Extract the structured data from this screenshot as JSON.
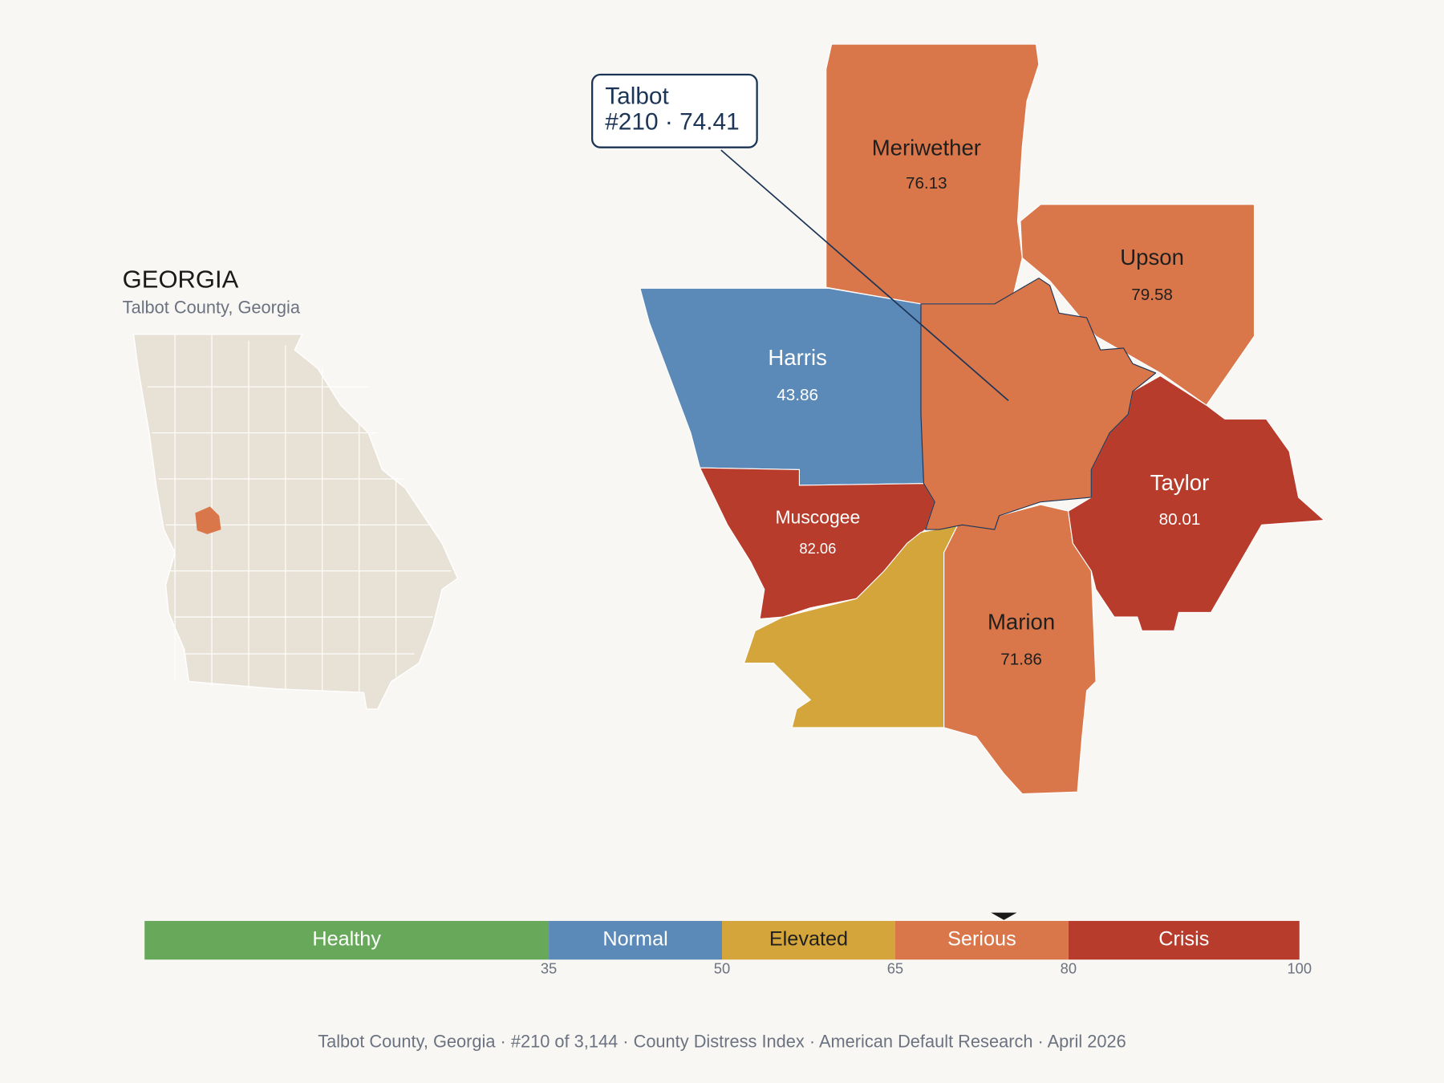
{
  "inset": {
    "title": "GEORGIA",
    "subtitle": "Talbot County, Georgia",
    "base_color": "#e8e2d6",
    "highlight_color": "#d9764a"
  },
  "counties": [
    {
      "name": "Meriwether",
      "value": 76.13,
      "color": "#d9764a"
    },
    {
      "name": "Upson",
      "value": 79.58,
      "color": "#d9764a"
    },
    {
      "name": "Harris",
      "value": 43.86,
      "color": "#5b8ab8"
    },
    {
      "color": "#d9764a"
    },
    {
      "name": "Muscogee",
      "value": 82.06,
      "color": "#b83c2c"
    },
    {
      "color": "#d4a53a"
    },
    {
      "name": "Marion",
      "value": 71.86,
      "color": "#d9764a"
    },
    {
      "name": "Taylor",
      "value": 80.01,
      "color": "#b83c2c"
    }
  ],
  "callout": {
    "lines": [
      "Talbot",
      "#210 · 74.41"
    ]
  },
  "scale": {
    "lim": [
      0,
      100
    ],
    "ticks": [
      35,
      50,
      65,
      80,
      100
    ],
    "bands": [
      {
        "label": "Healthy",
        "color": "#68a85a",
        "text_color": "#ffffff"
      },
      {
        "label": "Normal",
        "color": "#5b8ab8",
        "text_color": "#ffffff"
      },
      {
        "label": "Elevated",
        "color": "#d4a53a",
        "text_color": "#1f1f1f"
      },
      {
        "label": "Serious",
        "color": "#d9764a",
        "text_color": "#ffffff"
      },
      {
        "label": "Crisis",
        "color": "#b83c2c",
        "text_color": "#ffffff"
      }
    ],
    "marker": 74.41
  },
  "footer": "Talbot County, Georgia  ·  #210 of 3,144  ·  County Distress Index  ·  American Default Research  ·  April 2026"
}
